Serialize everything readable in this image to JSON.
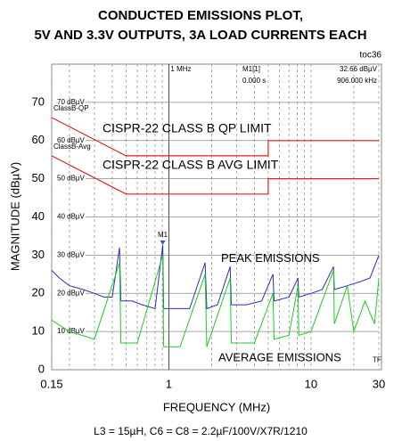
{
  "chart_data": {
    "type": "line",
    "title": [
      "CONDUCTED EMISSIONS PLOT,",
      "5V AND 3.3V OUTPUTS, 3A LOAD CURRENTS EACH"
    ],
    "figure_id": "toc36",
    "x_label": "FREQUENCY (MHz)",
    "y_label": "MAGNITUDE (dBµV)",
    "footnote": "L3 = 15µH, C6 = C8 = 2.2µF/100V/X7R/1210",
    "log_x": true,
    "grid": true,
    "xlim": [
      0.15,
      30
    ],
    "xticks": [
      0.15,
      1,
      10,
      30
    ],
    "xminor": [
      0.2,
      0.3,
      0.4,
      0.5,
      0.6,
      0.7,
      0.8,
      0.9,
      2,
      3,
      4,
      5,
      6,
      7,
      8,
      9,
      20
    ],
    "ylim": [
      0,
      80
    ],
    "yticks": [
      0,
      10,
      20,
      30,
      40,
      50,
      60,
      70
    ],
    "inner_tick_labels": [
      "10 dBµV",
      "20 dBµV",
      "30 dBµV",
      "40 dBµV",
      "50 dBµV",
      "60 dBµV",
      "70 dBµV"
    ],
    "marker_header": {
      "freq_line": "1 MHz",
      "name": "M1[1]",
      "time": "0.000 s",
      "level": "32.66 dBµV",
      "freq": "906.000 kHz"
    },
    "marker": {
      "label": "M1",
      "x": 0.906,
      "value": 32.66
    },
    "annotations": [
      "CISPR-22 CLASS B QP LIMIT",
      "CISPR-22 CLASS B AVG LIMIT",
      "TF"
    ],
    "series": [
      {
        "name": "ClassB-QP",
        "color": "#e02020",
        "x": [
          0.15,
          0.5,
          5,
          5,
          30
        ],
        "values": [
          66,
          56,
          56,
          60,
          60
        ]
      },
      {
        "name": "ClassB-Avg",
        "color": "#e02020",
        "x": [
          0.15,
          0.5,
          5,
          5,
          30
        ],
        "values": [
          56,
          46,
          46,
          50,
          50
        ]
      },
      {
        "name": "PEAK EMISSIONS",
        "color": "#2e2eb8",
        "x": [
          0.15,
          0.17,
          0.2,
          0.25,
          0.3,
          0.35,
          0.4,
          0.45,
          0.46,
          0.55,
          0.65,
          0.8,
          0.906,
          0.92,
          1.1,
          1.4,
          1.8,
          1.85,
          2.2,
          2.7,
          2.75,
          3.5,
          4.5,
          5.4,
          5.5,
          7,
          8.1,
          8.2,
          10,
          12,
          14.4,
          14.6,
          18,
          22,
          26,
          30
        ],
        "values": [
          26,
          24,
          22,
          21,
          20,
          19,
          19,
          32,
          18,
          18,
          17,
          16,
          32.66,
          16,
          16,
          16,
          28,
          16,
          17,
          27,
          17,
          17,
          18,
          25,
          18,
          19,
          24,
          19,
          20,
          21,
          27,
          21,
          22,
          23,
          24,
          30
        ]
      },
      {
        "name": "AVERAGE EMISSIONS",
        "color": "#22cc22",
        "x": [
          0.15,
          0.2,
          0.3,
          0.45,
          0.46,
          0.6,
          0.906,
          0.92,
          1.2,
          1.8,
          1.85,
          2.7,
          2.75,
          4,
          5.4,
          5.5,
          7,
          8.1,
          8.2,
          10,
          12,
          14.4,
          14.6,
          18,
          20,
          24,
          28,
          30
        ],
        "values": [
          13,
          10,
          8,
          28,
          7,
          7,
          30,
          6,
          6,
          25,
          6,
          24,
          7,
          7,
          20,
          8,
          9,
          22,
          9,
          10,
          18,
          26,
          12,
          22,
          10,
          18,
          12,
          24
        ]
      }
    ]
  }
}
